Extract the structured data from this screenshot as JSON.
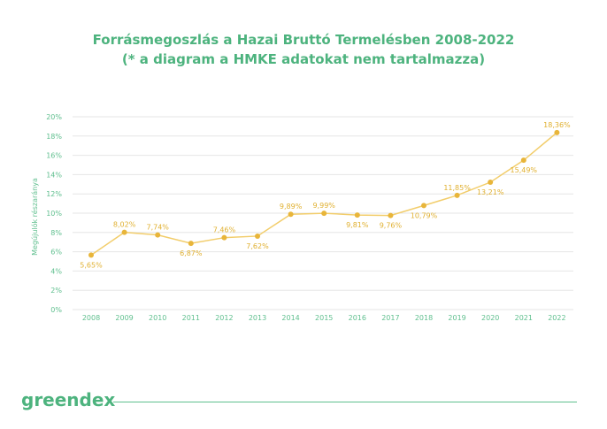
{
  "title": {
    "line1": "Forrásmegoszlás a Hazai Bruttó Termelésben 2008-2022",
    "line2": "(* a diagram a HMKE adatokat nem tartalmazza)"
  },
  "logo": "greendex",
  "colors": {
    "brand": "#4db37e",
    "line": "#f2cd6b",
    "point": "#e8b53a",
    "label": "#e0b030",
    "grid": "#e6e6e6"
  },
  "chart_data": {
    "type": "line",
    "title": "Forrásmegoszlás a Hazai Bruttó Termelésben 2008-2022",
    "subtitle": "(* a diagram a HMKE adatokat nem tartalmazza)",
    "xlabel": "",
    "ylabel": "Megújulók részaránya",
    "ylim": [
      0,
      20
    ],
    "yticks": [
      "0%",
      "2%",
      "4%",
      "6%",
      "8%",
      "10%",
      "12%",
      "14%",
      "16%",
      "18%",
      "20%"
    ],
    "grid": true,
    "categories": [
      "2008",
      "2009",
      "2010",
      "2011",
      "2012",
      "2013",
      "2014",
      "2015",
      "2016",
      "2017",
      "2018",
      "2019",
      "2020",
      "2021",
      "2022"
    ],
    "values": [
      5.65,
      8.02,
      7.74,
      6.87,
      7.46,
      7.62,
      9.89,
      9.99,
      9.81,
      9.76,
      10.79,
      11.85,
      13.21,
      15.49,
      18.36
    ],
    "labels": [
      "5,65%",
      "8,02%",
      "7,74%",
      "6,87%",
      "7,46%",
      "7,62%",
      "9,89%",
      "9,99%",
      "9,81%",
      "9,76%",
      "10,79%",
      "11,85%",
      "13,21%",
      "15,49%",
      "18,36%"
    ],
    "label_side": [
      "below",
      "above",
      "above",
      "below",
      "above",
      "below",
      "above",
      "above",
      "below",
      "below",
      "below",
      "above",
      "below",
      "below",
      "above"
    ]
  }
}
